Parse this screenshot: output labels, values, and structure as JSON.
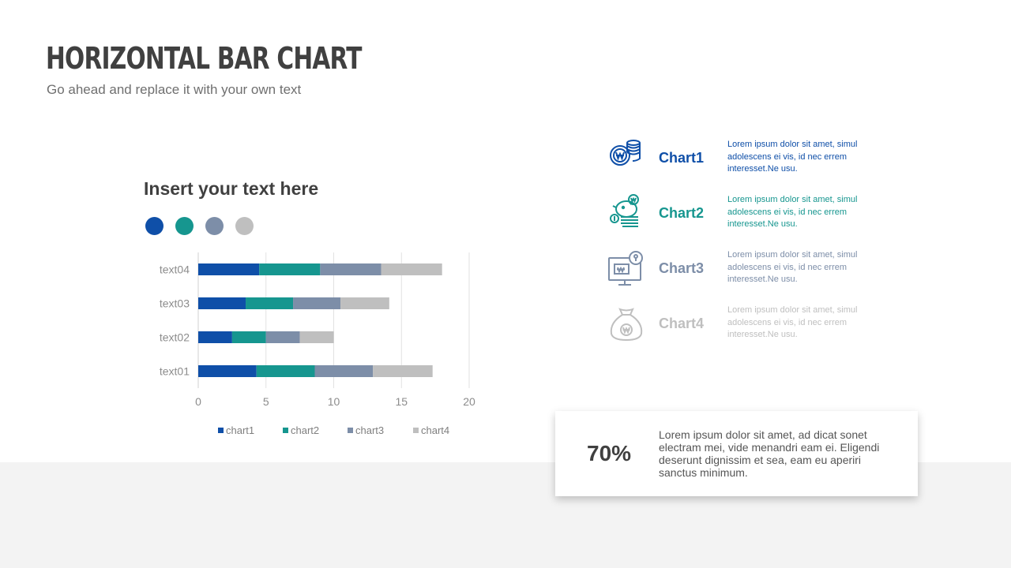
{
  "slide": {
    "title": "HORIZONTAL BAR CHART",
    "subtitle": "Go ahead and replace it with your own text"
  },
  "chart_section": {
    "heading": "Insert your text here",
    "dots": [
      {
        "color": "#0f4fa8"
      },
      {
        "color": "#16968f"
      },
      {
        "color": "#7d8ea8"
      },
      {
        "color": "#bfbfbf"
      }
    ]
  },
  "chart_data": {
    "type": "bar",
    "orientation": "horizontal",
    "stacked": true,
    "categories": [
      "text01",
      "text02",
      "text03",
      "text04"
    ],
    "series": [
      {
        "name": "chart1",
        "color": "#0f4fa8",
        "values": [
          4.3,
          2.5,
          3.5,
          4.5
        ]
      },
      {
        "name": "chart2",
        "color": "#16968f",
        "values": [
          4.3,
          2.5,
          3.5,
          4.5
        ]
      },
      {
        "name": "chart3",
        "color": "#7d8ea8",
        "values": [
          4.3,
          2.5,
          3.5,
          4.5
        ]
      },
      {
        "name": "chart4",
        "color": "#bfbfbf",
        "values": [
          4.4,
          2.5,
          3.6,
          4.5
        ]
      }
    ],
    "xlim": [
      0,
      20
    ],
    "xticks": [
      "0",
      "5",
      "10",
      "15",
      "20"
    ],
    "grid": "vertical",
    "legend": "bottom"
  },
  "info_items": [
    {
      "name": "Chart1",
      "color": "#0f4fa8",
      "icon": "coins-icon",
      "text": "Lorem ipsum dolor sit amet, simul adolescens ei vis, id nec errem interesset.Ne usu."
    },
    {
      "name": "Chart2",
      "color": "#16968f",
      "icon": "piggy-bank-icon",
      "text": "Lorem ipsum dolor sit amet, simul adolescens ei vis, id nec errem interesset.Ne usu."
    },
    {
      "name": "Chart3",
      "color": "#7d8ea8",
      "icon": "monitor-lock-icon",
      "text": "Lorem ipsum dolor sit amet, simul adolescens ei vis, id nec errem interesset.Ne usu."
    },
    {
      "name": "Chart4",
      "color": "#bfbfbf",
      "icon": "money-bag-icon",
      "text": "Lorem ipsum dolor sit amet, simul adolescens ei vis, id nec errem interesset.Ne usu."
    }
  ],
  "stat": {
    "value": "70%",
    "text": "Lorem ipsum dolor sit amet, ad dicat sonet electram mei, vide menandri eam ei. Eligendi deserunt dignissim et sea, eam eu aperiri sanctus minimum."
  }
}
